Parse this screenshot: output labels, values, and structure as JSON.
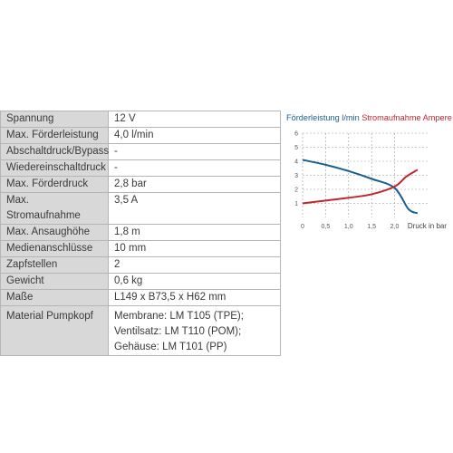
{
  "specs": [
    {
      "label": "Spannung",
      "value": "12 V"
    },
    {
      "label": "Max. Förderleistung",
      "value": "4,0 l/min"
    },
    {
      "label": "Abschaltdruck/Bypass",
      "value": "-"
    },
    {
      "label": "Wiedereinschaltdruck",
      "value": "-"
    },
    {
      "label": "Max. Förderdruck",
      "value": "2,8 bar"
    },
    {
      "label": "Max. Stromaufnahme",
      "value": "3,5 A"
    },
    {
      "label": "Max. Ansaughöhe",
      "value": "1,8 m"
    },
    {
      "label": "Medienanschlüsse",
      "value": "10 mm"
    },
    {
      "label": "Zapfstellen",
      "value": "2"
    },
    {
      "label": "Gewicht",
      "value": "0,6 kg"
    },
    {
      "label": "Maße",
      "value": "L149 x B73,5 x H62 mm"
    },
    {
      "label": "Material Pumpkopf",
      "value": "Membrane: LM T105 (TPE); Ventilsatz: LM T110 (POM); Gehäuse: LM T101 (PP)"
    }
  ],
  "chart_data": {
    "type": "line",
    "title": "",
    "xlabel": "Druck in bar",
    "ylabel": "",
    "x_ticks": [
      "0",
      "0,5",
      "1,0",
      "1,5",
      "2,0"
    ],
    "y_ticks": [
      "1",
      "2",
      "3",
      "4",
      "5",
      "6"
    ],
    "xlim": [
      0,
      2.6
    ],
    "ylim": [
      0,
      6
    ],
    "grid": "horizontal dashed",
    "legend_position": "top",
    "series": [
      {
        "name": "Förderleistung l/min",
        "color": "#1a5e8c",
        "x": [
          0,
          0.5,
          1.0,
          1.5,
          2.0,
          2.3,
          2.5
        ],
        "y": [
          4.1,
          3.75,
          3.3,
          2.75,
          2.1,
          0.6,
          0.3
        ]
      },
      {
        "name": "Stromaufnahme Ampere",
        "color": "#c0272d",
        "x": [
          0,
          0.5,
          1.0,
          1.5,
          2.0,
          2.25,
          2.5
        ],
        "y": [
          1.0,
          1.2,
          1.4,
          1.65,
          2.2,
          2.9,
          3.4
        ]
      }
    ]
  }
}
